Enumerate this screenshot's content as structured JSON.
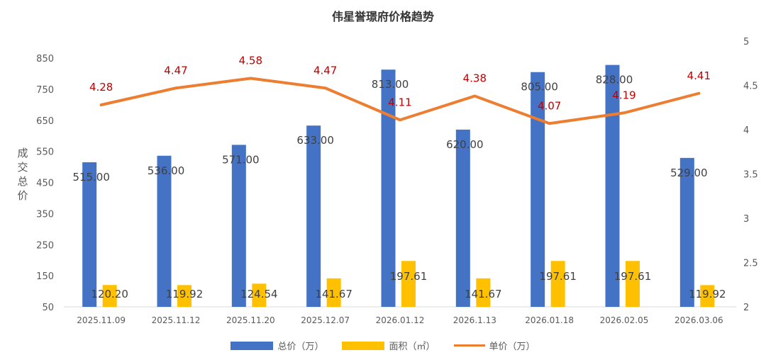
{
  "chart_data": {
    "type": "bar",
    "title": "伟星誉璟府价格趋势",
    "ylabel": "成交总价",
    "categories": [
      "2025.11.09",
      "2025.11.12",
      "2025.11.20",
      "2025.12.07",
      "2026.01.12",
      "2026.1.13",
      "2026.01.18",
      "2026.02.05",
      "2026.03.06"
    ],
    "series": [
      {
        "name": "总价（万）",
        "type": "bar",
        "axis": "left",
        "color": "#4472C4",
        "values": [
          515.0,
          536.0,
          571.0,
          633.0,
          813.0,
          620.0,
          805.0,
          828.0,
          529.0
        ],
        "labels": [
          "515.00",
          "536.00",
          "571.00",
          "633.00",
          "813.00",
          "620.00",
          "805.00",
          "828.00",
          "529.00"
        ]
      },
      {
        "name": "面积（㎡）",
        "type": "bar",
        "axis": "left",
        "color": "#FFC000",
        "values": [
          120.2,
          119.92,
          124.54,
          141.67,
          197.61,
          141.67,
          197.61,
          197.61,
          119.92
        ],
        "labels": [
          "120.20",
          "119.92",
          "124.54",
          "141.67",
          "197.61",
          "141.67",
          "197.61",
          "197.61",
          "119.92"
        ]
      },
      {
        "name": "单价（万）",
        "type": "line",
        "axis": "right",
        "color": "#ED7D31",
        "label_color": "#C00000",
        "values": [
          4.28,
          4.47,
          4.58,
          4.47,
          4.11,
          4.38,
          4.07,
          4.19,
          4.41
        ],
        "labels": [
          "4.28",
          "4.47",
          "4.58",
          "4.47",
          "4.11",
          "4.38",
          "4.07",
          "4.19",
          "4.41"
        ]
      }
    ],
    "ylim": [
      50,
      850
    ],
    "yticks": [
      "50",
      "150",
      "250",
      "350",
      "450",
      "550",
      "650",
      "750",
      "850"
    ],
    "y2lim": [
      2,
      5
    ],
    "y2ticks": [
      "2",
      "2.5",
      "3",
      "3.5",
      "4",
      "4.5",
      "5"
    ],
    "grid": false,
    "legend_position": "bottom"
  }
}
